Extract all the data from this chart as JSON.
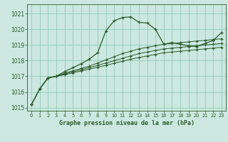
{
  "title": "Graphe pression niveau de la mer (hPa)",
  "bg_color": "#cce8e0",
  "grid_color": "#88c4b0",
  "line_color": "#2d5a2d",
  "xlim": [
    -0.5,
    23.5
  ],
  "ylim": [
    1014.8,
    1021.6
  ],
  "yticks": [
    1015,
    1016,
    1017,
    1018,
    1019,
    1020,
    1021
  ],
  "xticks": [
    0,
    1,
    2,
    3,
    4,
    5,
    6,
    7,
    8,
    9,
    10,
    11,
    12,
    13,
    14,
    15,
    16,
    17,
    18,
    19,
    20,
    21,
    22,
    23
  ],
  "series_main": [
    1015.2,
    1016.2,
    1016.9,
    1017.0,
    1017.3,
    1017.55,
    1017.8,
    1018.1,
    1018.5,
    1019.9,
    1020.55,
    1020.75,
    1020.8,
    1020.45,
    1020.4,
    1020.0,
    1019.05,
    1019.15,
    1019.05,
    1018.95,
    1018.9,
    1019.1,
    1019.3,
    1019.8
  ],
  "series2": [
    1015.2,
    1016.2,
    1016.9,
    1017.0,
    1017.2,
    1017.35,
    1017.5,
    1017.65,
    1017.85,
    1018.05,
    1018.25,
    1018.45,
    1018.6,
    1018.75,
    1018.85,
    1018.95,
    1019.05,
    1019.1,
    1019.15,
    1019.2,
    1019.25,
    1019.3,
    1019.35,
    1019.4
  ],
  "series3": [
    1015.2,
    1016.2,
    1016.9,
    1017.0,
    1017.15,
    1017.28,
    1017.42,
    1017.56,
    1017.7,
    1017.85,
    1018.0,
    1018.15,
    1018.3,
    1018.45,
    1018.55,
    1018.65,
    1018.75,
    1018.8,
    1018.85,
    1018.9,
    1018.95,
    1019.0,
    1019.05,
    1019.1
  ],
  "series4": [
    1015.2,
    1016.2,
    1016.9,
    1017.0,
    1017.1,
    1017.22,
    1017.34,
    1017.46,
    1017.58,
    1017.7,
    1017.83,
    1017.96,
    1018.09,
    1018.2,
    1018.3,
    1018.4,
    1018.5,
    1018.55,
    1018.6,
    1018.65,
    1018.7,
    1018.75,
    1018.8,
    1018.85
  ]
}
